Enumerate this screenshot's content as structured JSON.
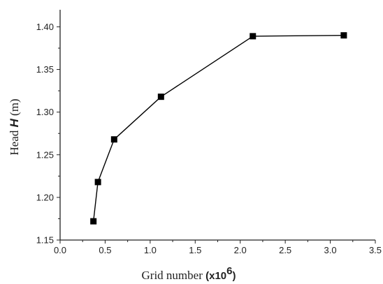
{
  "chart_data": {
    "type": "line",
    "title": "",
    "xlabel": {
      "prefix": "Grid number ",
      "unit": "(x10",
      "exponent": "6",
      "suffix": ")"
    },
    "ylabel": {
      "prefix": "Head ",
      "symbol": "H",
      "suffix": " (m)"
    },
    "xlim": [
      0.0,
      3.5
    ],
    "ylim": [
      1.15,
      1.42
    ],
    "x_ticks": [
      "0.0",
      "0.5",
      "1.0",
      "1.5",
      "2.0",
      "2.5",
      "3.0",
      "3.5"
    ],
    "y_ticks": [
      "1.15",
      "1.20",
      "1.25",
      "1.30",
      "1.35",
      "1.40"
    ],
    "grid": false,
    "legend": "none",
    "series": [
      {
        "marker": "square",
        "color": "#000000",
        "x": [
          0.37,
          0.42,
          0.6,
          1.12,
          2.14,
          3.15
        ],
        "y": [
          1.172,
          1.218,
          1.268,
          1.318,
          1.389,
          1.39
        ]
      }
    ]
  }
}
